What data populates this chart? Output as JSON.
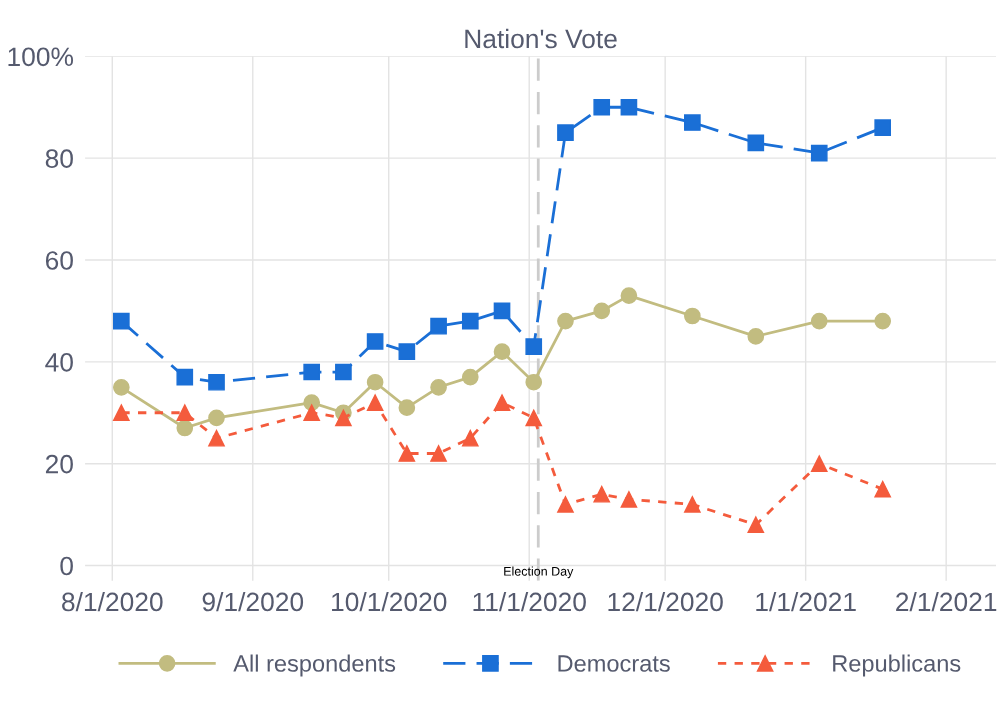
{
  "chart_data": {
    "type": "line",
    "title": "Nation's Vote",
    "x": [
      "2020-08-03",
      "2020-08-17",
      "2020-08-24",
      "2020-09-14",
      "2020-09-21",
      "2020-09-28",
      "2020-10-05",
      "2020-10-12",
      "2020-10-19",
      "2020-10-26",
      "2020-11-02",
      "2020-11-09",
      "2020-11-17",
      "2020-11-23",
      "2020-12-07",
      "2020-12-21",
      "2021-01-04",
      "2021-01-18"
    ],
    "series": [
      {
        "name": "All respondents",
        "color": "#c2bc80",
        "marker": "circle",
        "line_style": "solid",
        "values": [
          35,
          27,
          29,
          32,
          30,
          36,
          31,
          35,
          37,
          42,
          36,
          48,
          50,
          53,
          49,
          45,
          48,
          48
        ]
      },
      {
        "name": "Democrats",
        "color": "#1a6fd6",
        "marker": "square",
        "line_style": "dashed",
        "values": [
          48,
          37,
          36,
          38,
          38,
          44,
          42,
          47,
          48,
          50,
          43,
          85,
          90,
          90,
          87,
          83,
          81,
          86
        ]
      },
      {
        "name": "Republicans",
        "color": "#f45b3c",
        "marker": "triangle",
        "line_style": "dotted",
        "values": [
          30,
          30,
          25,
          30,
          29,
          32,
          22,
          22,
          25,
          32,
          29,
          12,
          14,
          13,
          12,
          8,
          20,
          15
        ]
      }
    ],
    "xlim": [
      "2020-07-26",
      "2021-02-12"
    ],
    "xticks": [
      {
        "value": "2020-08-01",
        "label": "8/1/2020"
      },
      {
        "value": "2020-09-01",
        "label": "9/1/2020"
      },
      {
        "value": "2020-10-01",
        "label": "10/1/2020"
      },
      {
        "value": "2020-11-01",
        "label": "11/1/2020"
      },
      {
        "value": "2020-12-01",
        "label": "12/1/2020"
      },
      {
        "value": "2021-01-01",
        "label": "1/1/2021"
      },
      {
        "value": "2021-02-01",
        "label": "2/1/2021"
      }
    ],
    "ylim": [
      -3,
      100
    ],
    "yticks": [
      0,
      20,
      40,
      60,
      80,
      {
        "value": 100,
        "label": "100%"
      }
    ],
    "ref_lines": [
      {
        "axis": "x",
        "value": "2020-11-03",
        "label": "Election Day",
        "color": "#cccccc",
        "line_style": "dashed"
      }
    ],
    "grid": true,
    "legend": "bottom"
  }
}
